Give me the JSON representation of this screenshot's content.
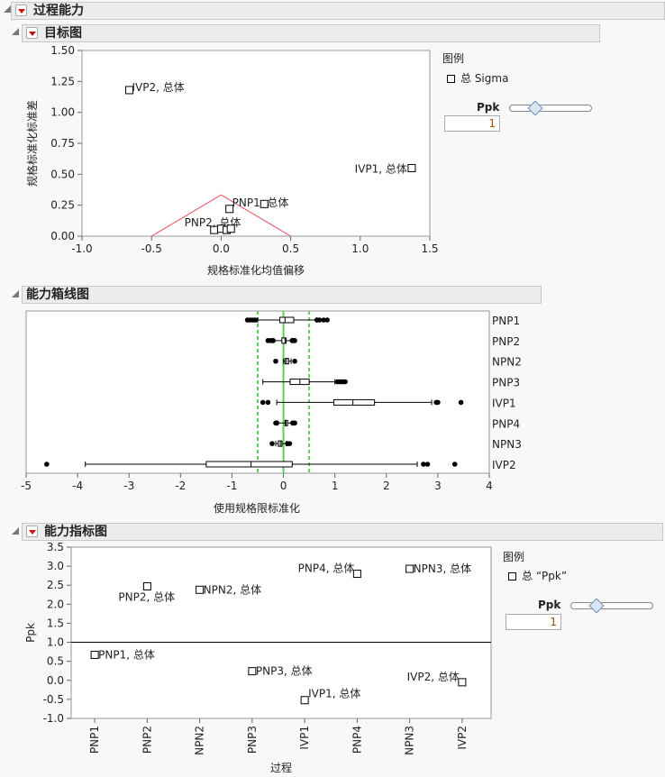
{
  "report": {
    "title": "过程能力"
  },
  "goal_plot": {
    "title": "目标图",
    "xlabel": "规格标准化均值偏移",
    "ylabel": "规格标准化标准差",
    "xticks": [
      "-1.0",
      "-0.5",
      "0.0",
      "0.5",
      "1.0",
      "1.5"
    ],
    "yticks": [
      "0.00",
      "0.25",
      "0.50",
      "0.75",
      "1.00",
      "1.25",
      "1.50"
    ],
    "xlim": [
      -1.0,
      1.5
    ],
    "ylim": [
      0,
      1.5
    ],
    "points": [
      {
        "name": "IVP2",
        "x": -0.66,
        "y": 1.18,
        "label": "IVP2, 总体"
      },
      {
        "name": "IVP1",
        "x": 1.37,
        "y": 0.55,
        "label": "IVP1, 总体"
      },
      {
        "name": "PNP1",
        "x": 0.06,
        "y": 0.22,
        "label": "PNP1, 总体"
      },
      {
        "name": "PNP3",
        "x": 0.31,
        "y": 0.26,
        "label": ""
      },
      {
        "name": "PNP2",
        "x": -0.05,
        "y": 0.05,
        "label": "PNP2, 总体"
      },
      {
        "name": "NPN2",
        "x": 0.0,
        "y": 0.06,
        "label": ""
      },
      {
        "name": "PNP4",
        "x": 0.04,
        "y": 0.05,
        "label": ""
      },
      {
        "name": "NPN3",
        "x": 0.07,
        "y": 0.06,
        "label": ""
      }
    ],
    "target_ppk": 1,
    "legend": {
      "title": "图例",
      "item": "总 Sigma"
    },
    "ppk_label": "Ppk",
    "ppk_value": "1",
    "slider_fraction": 0.3,
    "colors": {
      "target": "#e8495a"
    }
  },
  "box_plot": {
    "title": "能力箱线图",
    "xlabel": "使用规格限标准化",
    "xticks": [
      "-5",
      "-4",
      "-3",
      "-2",
      "-1",
      "0",
      "1",
      "2",
      "3",
      "4"
    ],
    "xlim": [
      -5,
      4
    ],
    "spec_lines": {
      "lsl": -0.5,
      "target": 0,
      "usl": 0.5,
      "color": "#5ccf5c"
    },
    "rows": [
      {
        "name": "PNP1",
        "wlo": -0.5,
        "q1": -0.07,
        "med": 0.03,
        "q3": 0.2,
        "whi": 0.65,
        "outliers": [
          -0.7,
          -0.65,
          -0.6,
          -0.55,
          0.65,
          0.7,
          0.78,
          0.85
        ]
      },
      {
        "name": "PNP2",
        "wlo": -0.2,
        "q1": -0.03,
        "med": 0.03,
        "q3": 0.05,
        "whi": 0.17,
        "outliers": [
          -0.3,
          -0.25,
          -0.2,
          0.17,
          0.2,
          0.22
        ]
      },
      {
        "name": "NPN2",
        "wlo": 0.0,
        "q1": 0.03,
        "med": 0.06,
        "q3": 0.1,
        "whi": 0.15,
        "outliers": [
          -0.15,
          0.22
        ]
      },
      {
        "name": "PNP3",
        "wlo": -0.4,
        "q1": 0.13,
        "med": 0.32,
        "q3": 0.5,
        "whi": 1.0,
        "outliers": [
          1.05,
          1.1,
          1.15,
          1.2
        ]
      },
      {
        "name": "IVP1",
        "wlo": -0.13,
        "q1": 0.98,
        "med": 1.35,
        "q3": 1.77,
        "whi": 2.88,
        "outliers": [
          -0.4,
          -0.3,
          2.97,
          3.0,
          3.45
        ]
      },
      {
        "name": "PNP4",
        "wlo": -0.12,
        "q1": 0.03,
        "med": 0.05,
        "q3": 0.08,
        "whi": 0.18,
        "outliers": [
          -0.15,
          -0.13,
          0.18,
          0.22
        ]
      },
      {
        "name": "NPN3",
        "wlo": -0.15,
        "q1": -0.1,
        "med": -0.06,
        "q3": -0.03,
        "whi": 0.05,
        "outliers": [
          -0.22,
          0.08,
          0.12
        ]
      },
      {
        "name": "IVP2",
        "wlo": -3.85,
        "q1": -1.5,
        "med": -0.63,
        "q3": 0.17,
        "whi": 2.6,
        "outliers": [
          -4.6,
          2.72,
          2.8,
          3.33
        ]
      }
    ]
  },
  "index_plot": {
    "title": "能力指标图",
    "xlabel": "过程",
    "ylabel": "Ppk",
    "yticks": [
      "-1.0",
      "-0.5",
      "0.0",
      "0.5",
      "1.0",
      "1.5",
      "2.0",
      "2.5",
      "3.0",
      "3.5"
    ],
    "ylim": [
      -1,
      3.5
    ],
    "ref_line": 1.0,
    "points": [
      {
        "name": "PNP1",
        "y": 0.67,
        "label": "PNP1, 总体"
      },
      {
        "name": "PNP2",
        "y": 2.47,
        "label": "PNP2, 总体"
      },
      {
        "name": "NPN2",
        "y": 2.38,
        "label": "NPN2, 总体"
      },
      {
        "name": "PNP3",
        "y": 0.24,
        "label": "PNP3, 总体"
      },
      {
        "name": "IVP1",
        "y": -0.52,
        "label": "IVP1, 总体"
      },
      {
        "name": "PNP4",
        "y": 2.8,
        "label": "PNP4, 总体"
      },
      {
        "name": "NPN3",
        "y": 2.93,
        "label": "NPN3, 总体"
      },
      {
        "name": "IVP2",
        "y": -0.05,
        "label": "IVP2, 总体"
      }
    ],
    "legend": {
      "title": "图例",
      "item": "总 “Ppk”"
    },
    "ppk_label": "Ppk",
    "ppk_value": "1",
    "slider_fraction": 0.3
  }
}
